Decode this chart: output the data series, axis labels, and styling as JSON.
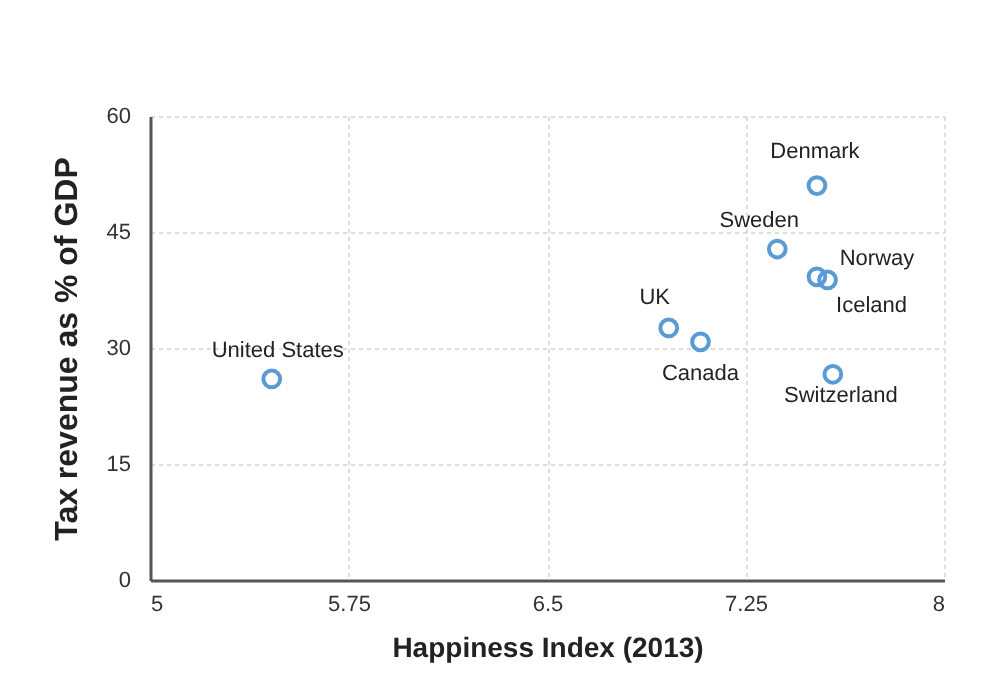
{
  "chart_data": {
    "type": "scatter",
    "xlabel": "Happiness Index (2013)",
    "ylabel": "Tax revenue as % of GDP",
    "x": [
      5.46,
      6.96,
      7.08,
      7.37,
      7.52,
      7.52,
      7.56,
      7.58
    ],
    "series": [
      {
        "color": "#5b9bd5",
        "values": [
          26.0,
          32.6,
          30.8,
          42.8,
          51.0,
          39.2,
          38.8,
          26.6
        ]
      }
    ],
    "xlim": [
      5,
      8
    ],
    "xticks": [
      5,
      5.75,
      6.5,
      7.25,
      8
    ],
    "ylim": [
      0,
      60
    ],
    "yticks": [
      0,
      15,
      30,
      45,
      60
    ],
    "grid": true,
    "marker": "circle",
    "annotations": [
      {
        "text": "United States",
        "x": 5.46,
        "y": 26.0
      },
      {
        "text": "UK",
        "x": 6.96,
        "y": 32.6
      },
      {
        "text": "Canada",
        "x": 7.08,
        "y": 30.8
      },
      {
        "text": "Sweden",
        "x": 7.37,
        "y": 42.8
      },
      {
        "text": "Denmark",
        "x": 7.52,
        "y": 51.0
      },
      {
        "text": "Norway",
        "x": 7.52,
        "y": 39.2
      },
      {
        "text": "Iceland",
        "x": 7.56,
        "y": 38.8
      },
      {
        "text": "Switzerland",
        "x": 7.58,
        "y": 26.6
      }
    ]
  }
}
